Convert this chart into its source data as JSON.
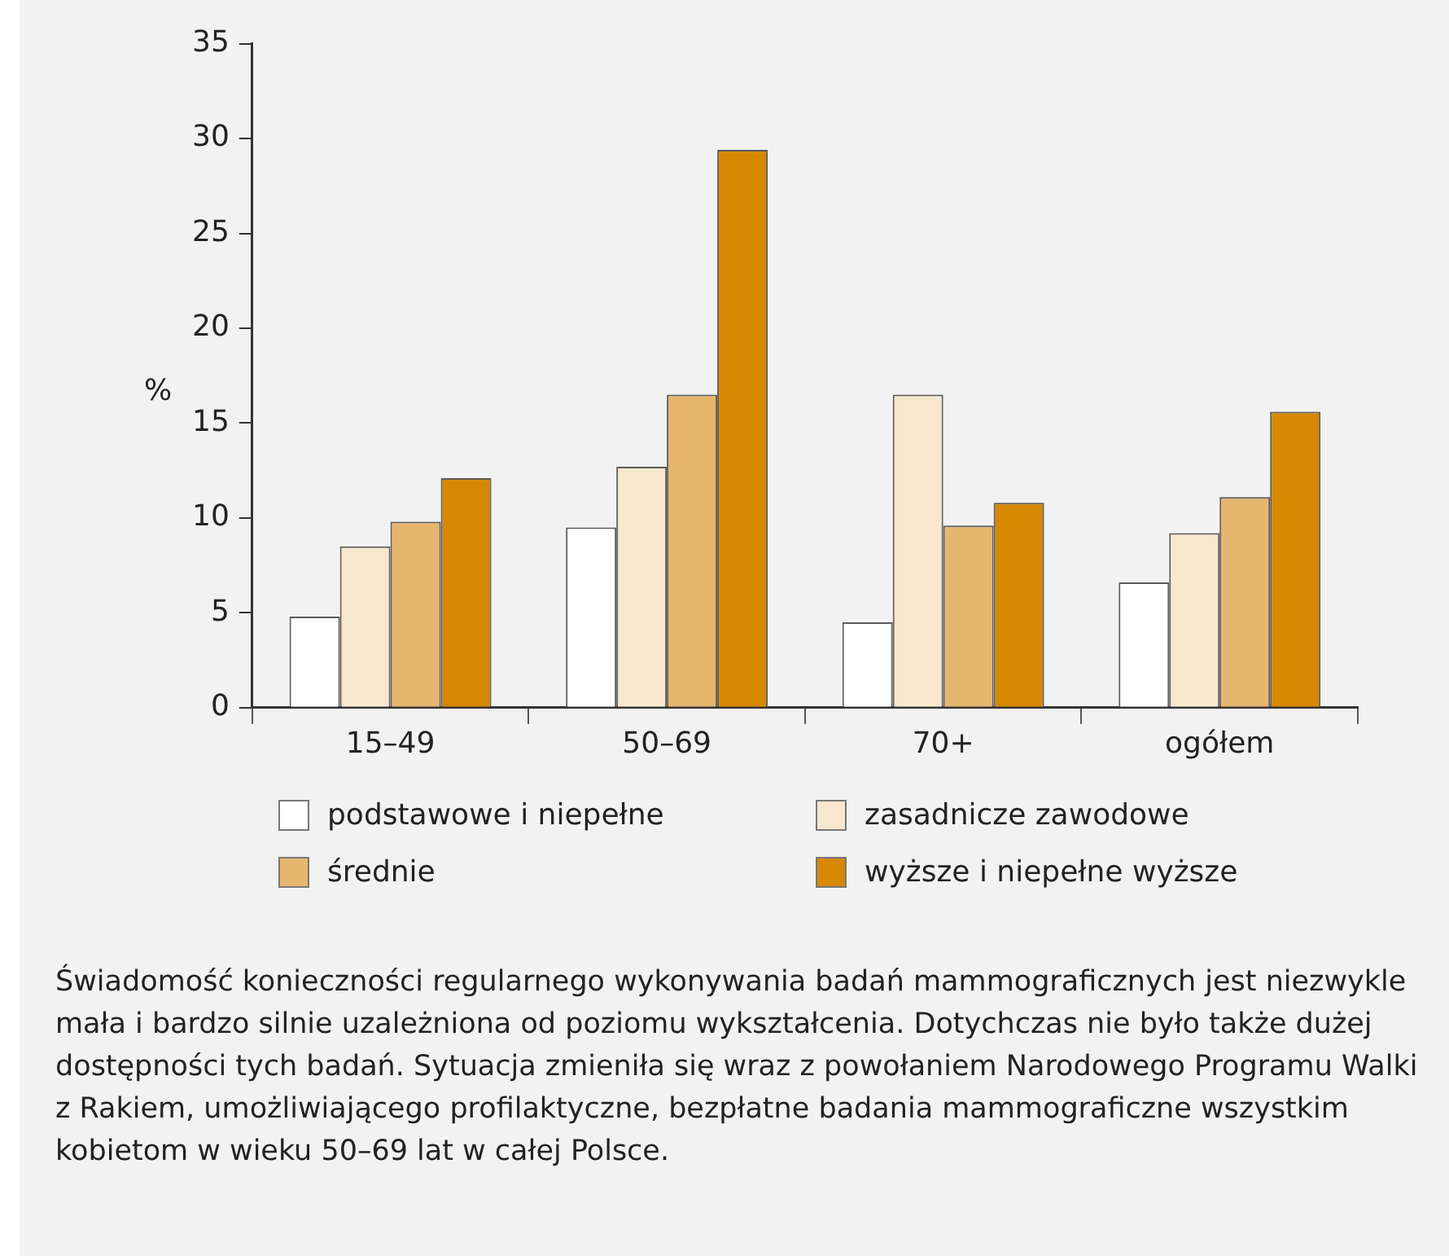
{
  "chart_data": {
    "type": "bar",
    "ylabel": "%",
    "categories": [
      "15–49",
      "50–69",
      "70+",
      "ogółem"
    ],
    "series": [
      {
        "name": "podstawowe i niepełne",
        "color": "#ffffff",
        "values": [
          4.8,
          9.5,
          4.5,
          6.6
        ]
      },
      {
        "name": "zasadnicze zawodowe",
        "color": "#f6e7cd",
        "values": [
          8.5,
          12.7,
          16.5,
          9.2
        ]
      },
      {
        "name": "średnie",
        "color": "#e6b66e",
        "values": [
          9.8,
          16.5,
          9.6,
          11.1
        ]
      },
      {
        "name": "wyższe i niepełne wyższe",
        "color": "#d68800",
        "values": [
          12.1,
          29.4,
          10.8,
          15.6
        ]
      }
    ],
    "ylim": [
      0,
      35
    ],
    "yticks": [
      0,
      5,
      10,
      15,
      20,
      25,
      30,
      35
    ],
    "grid": false,
    "legend": "bottom",
    "annotations": [
      "Świadomość konieczności regularnego wykonywania badań mammograficznych jest niezwykle mała i bardzo silnie uzależniona od poziomu wykształcenia. Dotychczas nie było także dużej dostępności tych badań. Sytuacja zmieniła się wraz z powołaniem Narodowego Programu Walki z Rakiem, umożliwiającego profilaktyczne, bezpłatne badania mammograficzne wszystkim kobietom w wieku 50–69 lat w całej Polsce."
    ]
  }
}
